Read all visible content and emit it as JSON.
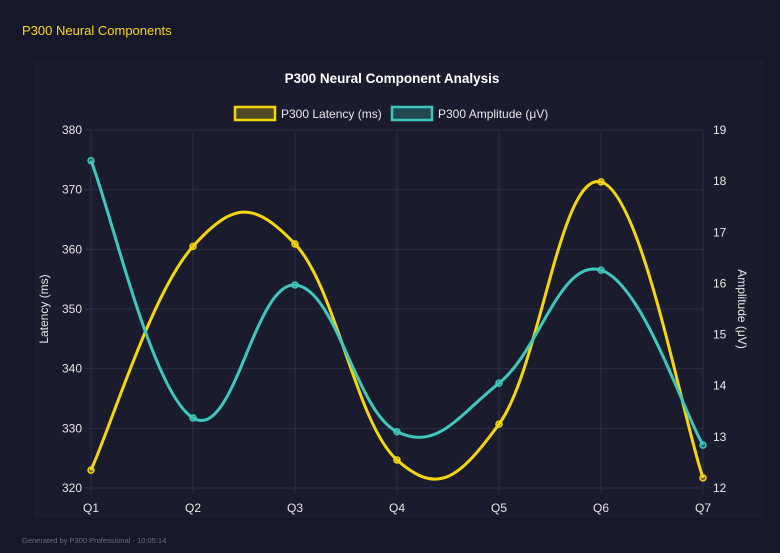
{
  "header": {
    "title": "P300 Neural Components"
  },
  "footer": {
    "text": "Generated by P300 Professional - 10:05:14"
  },
  "chart_data": {
    "type": "line",
    "title": "P300 Neural Component Analysis",
    "categories": [
      "Q1",
      "Q2",
      "Q3",
      "Q4",
      "Q5",
      "Q6",
      "Q7"
    ],
    "series": [
      {
        "name": "P300 Latency (ms)",
        "axis": "left",
        "color": "#f5d60a",
        "values": [
          323.0,
          360.5,
          360.9,
          324.7,
          330.7,
          371.3,
          321.7
        ]
      },
      {
        "name": "P300 Amplitude (μV)",
        "axis": "right",
        "color": "#3ec8bb",
        "values": [
          18.4,
          13.37,
          15.97,
          13.1,
          14.05,
          16.26,
          12.84
        ]
      }
    ],
    "ylabel": "Latency (ms)",
    "y2label": "Amplitude (μV)",
    "ylim": [
      320,
      380
    ],
    "yticks": [
      "320",
      "330",
      "340",
      "350",
      "360",
      "370",
      "380"
    ],
    "y2lim": [
      12,
      19
    ],
    "y2ticks": [
      "12",
      "13",
      "14",
      "15",
      "16",
      "17",
      "18",
      "19"
    ],
    "grid": true,
    "legend": "top"
  }
}
